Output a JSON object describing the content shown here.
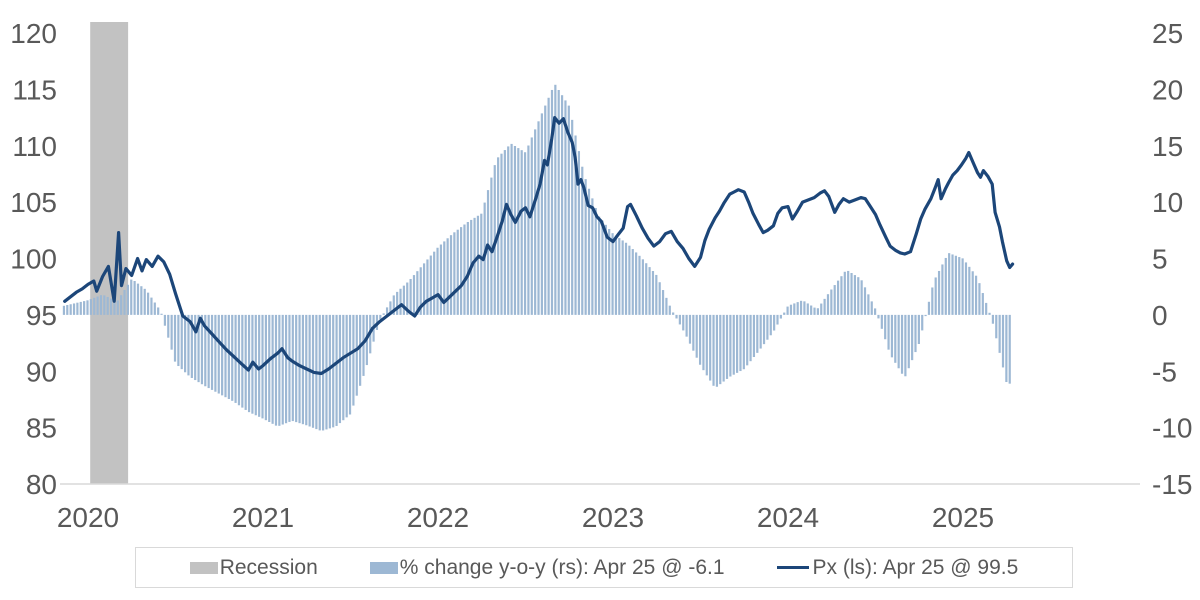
{
  "chart_data": {
    "type": "combo-bar-line-dual-axis",
    "title": "",
    "x_axis": {
      "labels": [
        "2020",
        "2021",
        "2022",
        "2023",
        "2024",
        "2025"
      ],
      "label_month_offsets": [
        0,
        12,
        24,
        36,
        48,
        60
      ],
      "note": "month offset 0 = Jan 2020; data starts Nov 2019 (offset -2) and ends Apr 2025 (offset 63)"
    },
    "left_axis": {
      "ticks": [
        120,
        115,
        110,
        105,
        100,
        95,
        90,
        85,
        80
      ],
      "range": [
        80,
        120
      ],
      "series": "Px (ls)"
    },
    "right_axis": {
      "ticks": [
        25,
        20,
        15,
        10,
        5,
        0,
        -5,
        -10,
        -15
      ],
      "range": [
        -15,
        25
      ],
      "series": "% change y-o-y (rs)"
    },
    "grid": "off",
    "legend_position": "bottom",
    "recession_band": {
      "label": "Recession",
      "start": "2020-02",
      "end": "2020-04",
      "start_m": 0.15,
      "end_m": 2.75
    },
    "bars": {
      "name": "% change y-o-y (rs)",
      "last_point_label": "Apr 25 @ -6.1",
      "frequency_drawn": "weekly (interpolated from monthly values below)",
      "start_m": -2,
      "values": [
        0.7,
        1.0,
        1.3,
        1.8,
        1.2,
        3.2,
        2.2,
        0.3,
        -4.3,
        -5.5,
        -6.3,
        -7.0,
        -7.7,
        -8.6,
        -9.2,
        -9.9,
        -9.4,
        -9.8,
        -10.3,
        -9.9,
        -8.8,
        -5.0,
        -0.5,
        1.8,
        3.0,
        4.5,
        6.0,
        7.2,
        8.2,
        9.0,
        13.8,
        15.2,
        14.4,
        17.5,
        20.5,
        18.5,
        12.5,
        8.8,
        7.2,
        6.3,
        5.0,
        3.5,
        0.5,
        -1.8,
        -4.5,
        -6.5,
        -5.5,
        -4.8,
        -3.2,
        -1.5,
        0.8,
        1.3,
        0.5,
        2.3,
        4.0,
        3.2,
        0.5,
        -3.5,
        -5.6,
        -2.5,
        3.0,
        5.5,
        5.0,
        3.3,
        -0.5,
        -6.1
      ]
    },
    "line": {
      "name": "Px (ls)",
      "last_point_label": "Apr 25 @ 99.5",
      "points": [
        [
          -1.6,
          96.2
        ],
        [
          -1.2,
          96.6
        ],
        [
          -0.8,
          97.0
        ],
        [
          -0.4,
          97.3
        ],
        [
          0,
          97.7
        ],
        [
          0.4,
          98.0
        ],
        [
          0.6,
          97.1
        ],
        [
          1,
          98.4
        ],
        [
          1.4,
          99.3
        ],
        [
          1.8,
          96.2
        ],
        [
          2.1,
          102.3
        ],
        [
          2.3,
          97.6
        ],
        [
          2.6,
          99.1
        ],
        [
          3,
          98.5
        ],
        [
          3.4,
          100.0
        ],
        [
          3.7,
          98.9
        ],
        [
          4,
          99.9
        ],
        [
          4.4,
          99.3
        ],
        [
          4.8,
          100.2
        ],
        [
          5.2,
          99.7
        ],
        [
          5.6,
          98.6
        ],
        [
          6,
          96.9
        ],
        [
          6.5,
          94.9
        ],
        [
          7,
          94.4
        ],
        [
          7.4,
          93.5
        ],
        [
          7.7,
          94.7
        ],
        [
          8,
          94.0
        ],
        [
          8.5,
          93.3
        ],
        [
          9,
          92.6
        ],
        [
          9.5,
          91.9
        ],
        [
          10,
          91.3
        ],
        [
          10.5,
          90.7
        ],
        [
          11,
          90.1
        ],
        [
          11.3,
          90.8
        ],
        [
          11.7,
          90.2
        ],
        [
          12,
          90.5
        ],
        [
          12.5,
          91.1
        ],
        [
          13,
          91.6
        ],
        [
          13.3,
          92.0
        ],
        [
          13.7,
          91.2
        ],
        [
          14,
          90.9
        ],
        [
          14.5,
          90.5
        ],
        [
          15,
          90.2
        ],
        [
          15.5,
          89.9
        ],
        [
          16,
          89.8
        ],
        [
          16.5,
          90.2
        ],
        [
          17,
          90.7
        ],
        [
          17.5,
          91.2
        ],
        [
          18,
          91.6
        ],
        [
          18.5,
          92.0
        ],
        [
          19,
          92.7
        ],
        [
          19.5,
          93.8
        ],
        [
          20,
          94.4
        ],
        [
          20.5,
          94.9
        ],
        [
          21,
          95.4
        ],
        [
          21.5,
          95.9
        ],
        [
          22,
          95.3
        ],
        [
          22.4,
          94.9
        ],
        [
          22.8,
          95.7
        ],
        [
          23.2,
          96.2
        ],
        [
          23.6,
          96.5
        ],
        [
          24,
          96.8
        ],
        [
          24.4,
          96.1
        ],
        [
          24.8,
          96.6
        ],
        [
          25.2,
          97.1
        ],
        [
          25.6,
          97.6
        ],
        [
          26,
          98.4
        ],
        [
          26.4,
          99.6
        ],
        [
          26.8,
          100.2
        ],
        [
          27.1,
          99.9
        ],
        [
          27.4,
          101.2
        ],
        [
          27.7,
          100.6
        ],
        [
          28.1,
          102.1
        ],
        [
          28.4,
          103.3
        ],
        [
          28.7,
          104.8
        ],
        [
          29,
          103.9
        ],
        [
          29.3,
          103.2
        ],
        [
          29.7,
          104.2
        ],
        [
          30,
          104.5
        ],
        [
          30.3,
          103.7
        ],
        [
          30.7,
          105.3
        ],
        [
          31,
          106.6
        ],
        [
          31.3,
          108.7
        ],
        [
          31.5,
          108.3
        ],
        [
          31.8,
          110.6
        ],
        [
          32,
          112.5
        ],
        [
          32.3,
          112.0
        ],
        [
          32.6,
          112.4
        ],
        [
          32.9,
          111.2
        ],
        [
          33.2,
          110.3
        ],
        [
          33.4,
          109.0
        ],
        [
          33.6,
          106.6
        ],
        [
          33.8,
          107.0
        ],
        [
          34,
          106.3
        ],
        [
          34.3,
          104.7
        ],
        [
          34.6,
          104.5
        ],
        [
          34.9,
          103.7
        ],
        [
          35.2,
          103.3
        ],
        [
          35.6,
          101.9
        ],
        [
          36,
          101.5
        ],
        [
          36.4,
          102.2
        ],
        [
          36.7,
          102.7
        ],
        [
          37,
          104.6
        ],
        [
          37.2,
          104.8
        ],
        [
          37.6,
          103.8
        ],
        [
          38,
          102.7
        ],
        [
          38.4,
          101.8
        ],
        [
          38.8,
          101.1
        ],
        [
          39.2,
          101.5
        ],
        [
          39.6,
          102.2
        ],
        [
          40,
          102.4
        ],
        [
          40.4,
          101.5
        ],
        [
          40.8,
          100.9
        ],
        [
          41.2,
          100.0
        ],
        [
          41.6,
          99.3
        ],
        [
          42,
          100.1
        ],
        [
          42.3,
          101.6
        ],
        [
          42.6,
          102.6
        ],
        [
          43,
          103.6
        ],
        [
          43.3,
          104.2
        ],
        [
          43.6,
          104.9
        ],
        [
          44,
          105.7
        ],
        [
          44.3,
          105.9
        ],
        [
          44.6,
          106.1
        ],
        [
          45,
          105.9
        ],
        [
          45.3,
          105.0
        ],
        [
          45.6,
          104.0
        ],
        [
          46,
          103.0
        ],
        [
          46.3,
          102.3
        ],
        [
          46.6,
          102.5
        ],
        [
          47,
          102.9
        ],
        [
          47.3,
          104.0
        ],
        [
          47.6,
          104.5
        ],
        [
          48,
          104.6
        ],
        [
          48.3,
          103.5
        ],
        [
          48.6,
          104.1
        ],
        [
          49,
          105.0
        ],
        [
          49.4,
          105.2
        ],
        [
          49.8,
          105.4
        ],
        [
          50.2,
          105.8
        ],
        [
          50.5,
          106.0
        ],
        [
          50.8,
          105.5
        ],
        [
          51.2,
          104.1
        ],
        [
          51.5,
          104.8
        ],
        [
          51.8,
          105.3
        ],
        [
          52.2,
          105.0
        ],
        [
          52.6,
          105.2
        ],
        [
          53,
          105.4
        ],
        [
          53.3,
          105.3
        ],
        [
          53.6,
          104.7
        ],
        [
          54,
          103.9
        ],
        [
          54.3,
          103.0
        ],
        [
          54.7,
          101.9
        ],
        [
          55,
          101.1
        ],
        [
          55.4,
          100.7
        ],
        [
          55.7,
          100.5
        ],
        [
          56,
          100.4
        ],
        [
          56.4,
          100.6
        ],
        [
          56.8,
          102.2
        ],
        [
          57.1,
          103.5
        ],
        [
          57.4,
          104.4
        ],
        [
          57.8,
          105.3
        ],
        [
          58.1,
          106.3
        ],
        [
          58.3,
          107.0
        ],
        [
          58.5,
          105.3
        ],
        [
          58.8,
          106.2
        ],
        [
          59,
          106.7
        ],
        [
          59.3,
          107.4
        ],
        [
          59.6,
          107.8
        ],
        [
          59.9,
          108.3
        ],
        [
          60.2,
          108.9
        ],
        [
          60.4,
          109.4
        ],
        [
          60.7,
          108.5
        ],
        [
          61,
          107.6
        ],
        [
          61.2,
          107.2
        ],
        [
          61.4,
          107.8
        ],
        [
          61.7,
          107.3
        ],
        [
          62,
          106.6
        ],
        [
          62.2,
          104.1
        ],
        [
          62.5,
          102.8
        ],
        [
          62.7,
          101.5
        ],
        [
          63,
          99.8
        ],
        [
          63.2,
          99.2
        ],
        [
          63.4,
          99.5
        ]
      ]
    }
  },
  "legend": {
    "items": [
      {
        "label": "Recession",
        "type": "box",
        "color": "#c2c2c2"
      },
      {
        "label": "% change y-o-y (rs): Apr 25 @ -6.1",
        "type": "box",
        "color": "#9db8d4"
      },
      {
        "label": "Px (ls): Apr 25 @ 99.5",
        "type": "line",
        "color": "#1c4679"
      }
    ]
  },
  "colors": {
    "bars": "#9db8d4",
    "line": "#1c4679",
    "recession": "#c2c2c2",
    "axis_text": "#595959",
    "axis_line": "#d9d9d9",
    "background": "#ffffff",
    "legend_border": "#d9d9d9"
  }
}
